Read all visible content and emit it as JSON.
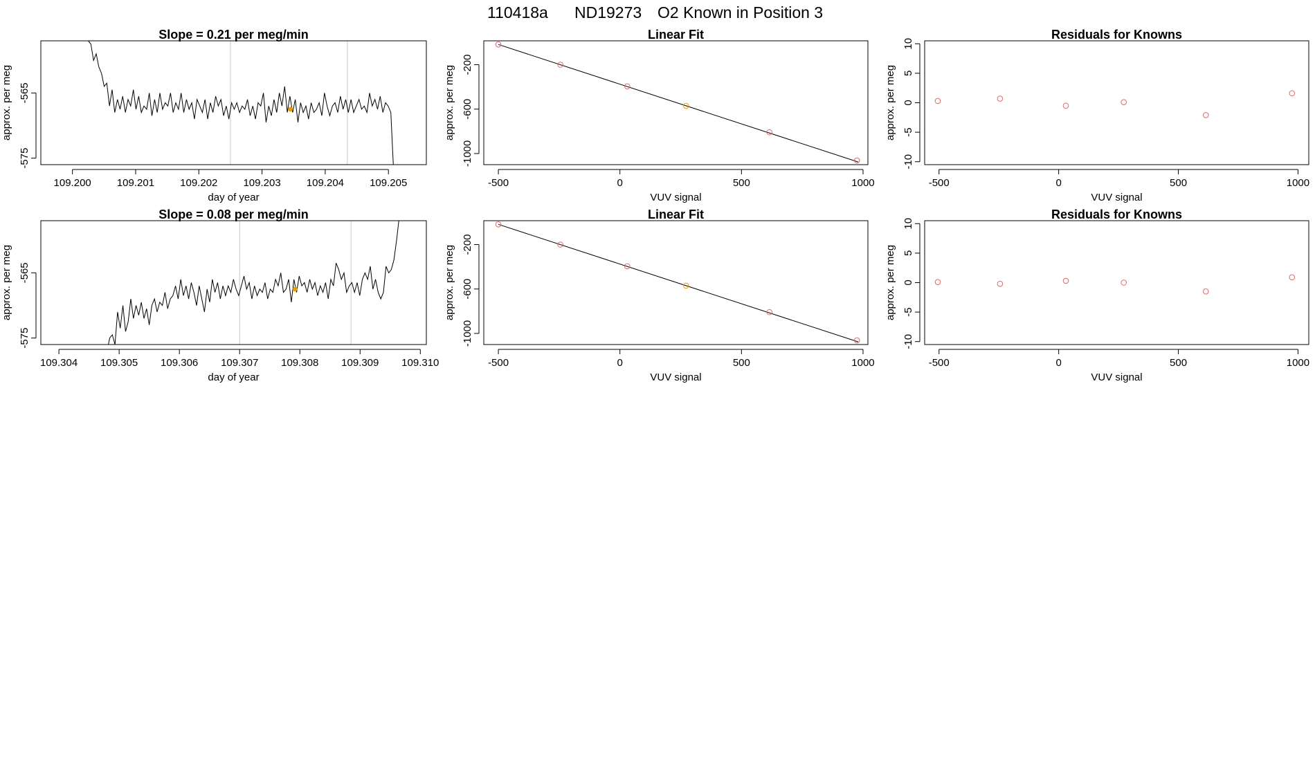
{
  "page_title": {
    "run_id": "110418a",
    "tank_id": "ND19273",
    "description": "O2 Known in Position  3"
  },
  "colors": {
    "point_red": "#e06666",
    "point_orange": "#e69f00",
    "line": "#000000",
    "vline": "#c8c8c8"
  },
  "chart_data": [
    {
      "type": "line",
      "title": "Slope =  0.21  per meg/min",
      "xlabel": "day of year",
      "ylabel": "approx. per meg",
      "xlim": [
        109.1995,
        109.2056
      ],
      "ylim": [
        -576,
        -557
      ],
      "xticks": [
        "109.200",
        "109.201",
        "109.202",
        "109.203",
        "109.204",
        "109.205"
      ],
      "xtick_values": [
        109.2,
        109.201,
        109.202,
        109.203,
        109.204,
        109.205
      ],
      "yticks": [
        "-575",
        "-565"
      ],
      "ytick_values": [
        -575,
        -565
      ],
      "grid": false,
      "vlines": [
        109.2025,
        109.20435
      ],
      "highlight_point": {
        "x": 109.20345,
        "y": -567.5
      },
      "series": [
        {
          "name": "per meg trace",
          "x_start": 109.20025,
          "x_end": 109.20508,
          "values": [
            -557,
            -557.5,
            -560,
            -559,
            -561,
            -562,
            -564,
            -563.5,
            -567,
            -564.5,
            -568,
            -566,
            -567.5,
            -565.5,
            -568,
            -566,
            -567,
            -564.5,
            -567.5,
            -565.5,
            -568,
            -567,
            -567.5,
            -565,
            -568.5,
            -566,
            -568,
            -565,
            -567.5,
            -566.5,
            -567,
            -565,
            -568,
            -566.5,
            -567.5,
            -565,
            -568,
            -566,
            -567.5,
            -566.5,
            -569,
            -566,
            -567,
            -568,
            -566,
            -569,
            -566.5,
            -568,
            -565.5,
            -567,
            -566,
            -568.5,
            -567,
            -569,
            -566.5,
            -567.5,
            -566.5,
            -568,
            -567,
            -567.5,
            -566,
            -568.5,
            -567,
            -569,
            -566.5,
            -567,
            -565,
            -569.5,
            -567,
            -568.5,
            -566,
            -568,
            -565,
            -567,
            -564,
            -568,
            -565.5,
            -568,
            -566,
            -569.5,
            -566.5,
            -568,
            -567,
            -569,
            -566.5,
            -568,
            -567.5,
            -566.5,
            -568.5,
            -565,
            -567,
            -568.5,
            -567,
            -566.5,
            -568,
            -565.5,
            -567.5,
            -566,
            -568,
            -566,
            -568,
            -567,
            -566,
            -567.5,
            -567,
            -568,
            -565,
            -567,
            -566,
            -567.5,
            -565.5,
            -568,
            -566.5,
            -567,
            -568,
            -576.5
          ]
        }
      ]
    },
    {
      "type": "scatter",
      "title": "Linear Fit",
      "xlabel": "VUV signal",
      "ylabel": "approx. per meg",
      "xlim": [
        -560,
        1020
      ],
      "ylim": [
        -1100,
        15
      ],
      "xticks": [
        "-500",
        "0",
        "500",
        "1000"
      ],
      "xtick_values": [
        -500,
        0,
        500,
        1000
      ],
      "yticks": [
        "-1000",
        "-600",
        "-200"
      ],
      "ytick_values": [
        -1000,
        -600,
        -200
      ],
      "grid": false,
      "fit_line": {
        "x": [
          -500,
          980
        ],
        "y": [
          -18,
          -1076
        ]
      },
      "points": [
        {
          "x": -500,
          "y": -18,
          "color": "red"
        },
        {
          "x": -245,
          "y": -200,
          "color": "red"
        },
        {
          "x": 30,
          "y": -395,
          "color": "red"
        },
        {
          "x": 272,
          "y": -570,
          "color": "orange"
        },
        {
          "x": 615,
          "y": -808,
          "color": "red"
        },
        {
          "x": 975,
          "y": -1062,
          "color": "red"
        }
      ]
    },
    {
      "type": "scatter",
      "title": "Residuals for Knowns",
      "xlabel": "VUV signal",
      "ylabel": "approx. per meg",
      "xlim": [
        -560,
        1045
      ],
      "ylim": [
        -10.5,
        10.5
      ],
      "xticks": [
        "-500",
        "0",
        "500",
        "1000"
      ],
      "xtick_values": [
        -500,
        0,
        500,
        1000
      ],
      "yticks": [
        "-10",
        "-5",
        "0",
        "5",
        "10"
      ],
      "ytick_values": [
        -10,
        -5,
        0,
        5,
        10
      ],
      "grid": false,
      "points": [
        {
          "x": -505,
          "y": 0.3,
          "color": "red"
        },
        {
          "x": -245,
          "y": 0.7,
          "color": "red"
        },
        {
          "x": 30,
          "y": -0.5,
          "color": "red"
        },
        {
          "x": 272,
          "y": 0.1,
          "color": "red"
        },
        {
          "x": 615,
          "y": -2.1,
          "color": "red"
        },
        {
          "x": 975,
          "y": 1.6,
          "color": "red"
        }
      ]
    },
    {
      "type": "line",
      "title": "Slope =  0.08  per meg/min",
      "xlabel": "day of year",
      "ylabel": "approx. per meg",
      "xlim": [
        109.3037,
        109.3101
      ],
      "ylim": [
        -576,
        -557
      ],
      "xticks": [
        "109.304",
        "109.305",
        "109.306",
        "109.307",
        "109.308",
        "109.309",
        "109.310"
      ],
      "xtick_values": [
        109.304,
        109.305,
        109.306,
        109.307,
        109.308,
        109.309,
        109.31
      ],
      "yticks": [
        "-575",
        "-565"
      ],
      "ytick_values": [
        -575,
        -565
      ],
      "grid": false,
      "vlines": [
        109.307,
        109.30885
      ],
      "highlight_point": {
        "x": 109.30792,
        "y": -567.5
      },
      "series": [
        {
          "name": "per meg trace",
          "x_start": 109.3048,
          "x_end": 109.30965,
          "values": [
            -577,
            -575,
            -574.5,
            -576,
            -571,
            -573.5,
            -570,
            -574,
            -572.5,
            -569,
            -572,
            -570,
            -571.5,
            -569.5,
            -572,
            -570.5,
            -573,
            -570,
            -569,
            -571,
            -569.5,
            -570,
            -568,
            -570.5,
            -569,
            -568.5,
            -567,
            -569,
            -566,
            -568.5,
            -567,
            -569,
            -566.5,
            -568,
            -570,
            -567,
            -569,
            -571,
            -567.5,
            -569.5,
            -566,
            -568,
            -566.5,
            -569,
            -567,
            -568.5,
            -567,
            -568,
            -566,
            -567.5,
            -568.5,
            -567,
            -565.5,
            -567.5,
            -566.5,
            -569,
            -567,
            -568.5,
            -567.5,
            -568,
            -566.5,
            -569,
            -567.5,
            -568,
            -566,
            -567,
            -565,
            -568,
            -567.5,
            -566,
            -569.5,
            -566,
            -568,
            -565.5,
            -567,
            -566.5,
            -568,
            -566,
            -567.5,
            -566.5,
            -568.5,
            -567,
            -568,
            -566.5,
            -569,
            -566,
            -567,
            -563.5,
            -564.5,
            -566,
            -565,
            -568,
            -567,
            -566.5,
            -568,
            -566.5,
            -568.5,
            -566,
            -565,
            -566,
            -564,
            -567.5,
            -566,
            -568,
            -569,
            -568,
            -564,
            -565,
            -564.5,
            -563,
            -560,
            -556.5
          ]
        }
      ]
    },
    {
      "type": "scatter",
      "title": "Linear Fit",
      "xlabel": "VUV signal",
      "ylabel": "approx. per meg",
      "xlim": [
        -560,
        1020
      ],
      "ylim": [
        -1100,
        15
      ],
      "xticks": [
        "-500",
        "0",
        "500",
        "1000"
      ],
      "xtick_values": [
        -500,
        0,
        500,
        1000
      ],
      "yticks": [
        "-1000",
        "-600",
        "-200"
      ],
      "ytick_values": [
        -1000,
        -600,
        -200
      ],
      "grid": false,
      "fit_line": {
        "x": [
          -500,
          980
        ],
        "y": [
          -18,
          -1076
        ]
      },
      "points": [
        {
          "x": -500,
          "y": -18,
          "color": "red"
        },
        {
          "x": -245,
          "y": -200,
          "color": "red"
        },
        {
          "x": 30,
          "y": -395,
          "color": "red"
        },
        {
          "x": 272,
          "y": -570,
          "color": "orange"
        },
        {
          "x": 615,
          "y": -808,
          "color": "red"
        },
        {
          "x": 975,
          "y": -1062,
          "color": "red"
        }
      ]
    },
    {
      "type": "scatter",
      "title": "Residuals for Knowns",
      "xlabel": "VUV signal",
      "ylabel": "approx. per meg",
      "xlim": [
        -560,
        1045
      ],
      "ylim": [
        -10.5,
        10.5
      ],
      "xticks": [
        "-500",
        "0",
        "500",
        "1000"
      ],
      "xtick_values": [
        -500,
        0,
        500,
        1000
      ],
      "yticks": [
        "-10",
        "-5",
        "0",
        "5",
        "10"
      ],
      "ytick_values": [
        -10,
        -5,
        0,
        5,
        10
      ],
      "grid": false,
      "points": [
        {
          "x": -505,
          "y": 0.1,
          "color": "red"
        },
        {
          "x": -245,
          "y": -0.2,
          "color": "red"
        },
        {
          "x": 30,
          "y": 0.3,
          "color": "red"
        },
        {
          "x": 272,
          "y": 0.0,
          "color": "red"
        },
        {
          "x": 615,
          "y": -1.5,
          "color": "red"
        },
        {
          "x": 975,
          "y": 0.9,
          "color": "red"
        }
      ]
    }
  ]
}
